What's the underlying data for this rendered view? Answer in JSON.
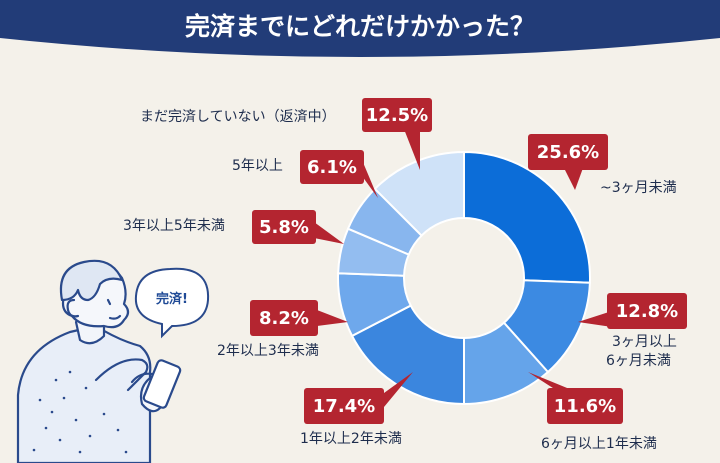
{
  "colors": {
    "background": "#f4f1ea",
    "banner": "#223c78",
    "label_box": "#b42530",
    "text": "#1e2d4d",
    "person_line": "#2a4a8c"
  },
  "chart_data": {
    "type": "pie",
    "donut": true,
    "title": "完済までにどれだけかかった？",
    "slices": [
      {
        "label": "~3ヶ月未満",
        "value": 25.6,
        "display": "25.6%",
        "color": "#0c6dd8"
      },
      {
        "label": "3ヶ月以上\n6ヶ月未満",
        "value": 12.8,
        "display": "12.8%",
        "color": "#3c8ae2"
      },
      {
        "label": "6ヶ月以上1年未満",
        "value": 11.6,
        "display": "11.6%",
        "color": "#65a4ea"
      },
      {
        "label": "1年以上2年未満",
        "value": 17.4,
        "display": "17.4%",
        "color": "#3b86de"
      },
      {
        "label": "2年以上3年未満",
        "value": 8.2,
        "display": "8.2%",
        "color": "#6ea8ec"
      },
      {
        "label": "3年以上5年未満",
        "value": 5.8,
        "display": "5.8%",
        "color": "#93bdf0"
      },
      {
        "label": "5年以上",
        "value": 6.1,
        "display": "6.1%",
        "color": "#88b6ee"
      },
      {
        "label": "まだ完済していない（返済中）",
        "value": 12.5,
        "display": "12.5%",
        "color": "#cfe2f8"
      }
    ]
  },
  "illustration": {
    "speech_bubble": "完済!"
  }
}
